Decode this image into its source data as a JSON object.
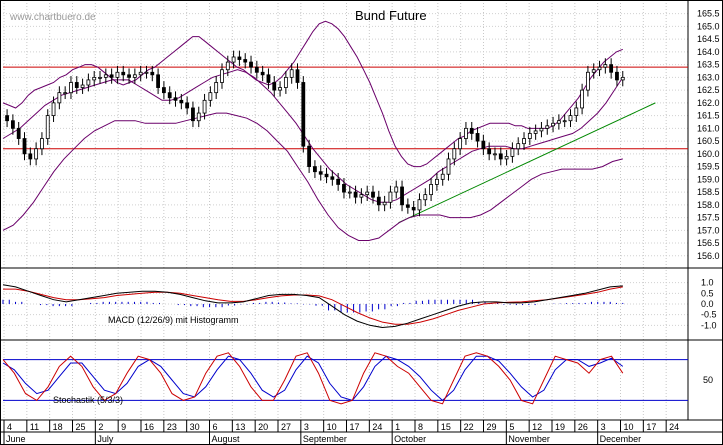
{
  "watermark": "www.chartbuero.de",
  "chart_data": [
    {
      "type": "candlestick",
      "title": "Bund Future",
      "ylim": [
        155.6,
        165.8
      ],
      "y_ticks": [
        "165.5",
        "165.0",
        "164.5",
        "164.0",
        "163.5",
        "163.0",
        "162.5",
        "162.0",
        "161.5",
        "161.0",
        "160.5",
        "160.0",
        "159.5",
        "159.0",
        "158.5",
        "158.0",
        "157.5",
        "157.0",
        "156.5",
        "156.0"
      ],
      "x_ticks": [
        "4",
        "11",
        "18",
        "25",
        "2",
        "9",
        "16",
        "23",
        "30",
        "6",
        "13",
        "20",
        "27",
        "3",
        "10",
        "17",
        "24",
        "1",
        "8",
        "15",
        "22",
        "29",
        "5",
        "12",
        "19",
        "26",
        "3",
        "10",
        "17",
        "24"
      ],
      "months": [
        "June",
        "July",
        "August",
        "September",
        "October",
        "November",
        "December"
      ],
      "horizontal_lines": [
        163.4,
        160.2
      ],
      "trendline": {
        "from": [
          97,
          157.3
        ],
        "to": [
          160,
          162.0
        ]
      },
      "close": [
        161.3,
        161.0,
        160.6,
        160.0,
        159.8,
        160.2,
        160.6,
        161.5,
        162.0,
        162.4,
        162.4,
        162.8,
        162.6,
        162.7,
        162.9,
        163.0,
        163.0,
        163.1,
        163.0,
        163.2,
        163.1,
        163.0,
        163.1,
        163.2,
        163.2,
        163.1,
        162.6,
        162.4,
        162.2,
        162.1,
        162.0,
        161.8,
        161.3,
        161.6,
        162.1,
        162.4,
        162.8,
        163.3,
        163.6,
        163.8,
        163.7,
        163.6,
        163.4,
        163.2,
        163.1,
        162.8,
        162.5,
        162.6,
        163.0,
        163.3,
        162.8,
        160.3,
        159.5,
        159.3,
        159.2,
        159.1,
        159.0,
        158.8,
        158.5,
        158.5,
        158.3,
        158.4,
        158.5,
        158.3,
        158.0,
        158.1,
        158.5,
        158.7,
        158.0,
        157.9,
        157.8,
        158.2,
        158.4,
        158.8,
        159.0,
        159.2,
        159.8,
        160.2,
        160.6,
        161.0,
        160.8,
        160.5,
        160.2,
        160.0,
        160.0,
        159.8,
        159.9,
        160.2,
        160.4,
        160.6,
        160.8,
        160.9,
        161.0,
        161.1,
        161.2,
        161.3,
        161.3,
        161.5,
        161.8,
        162.5,
        163.2,
        163.3,
        163.4,
        163.5,
        163.2,
        162.9,
        163.0
      ],
      "upper_band": [
        162.0,
        161.9,
        161.8,
        162.0,
        162.3,
        162.5,
        162.6,
        162.7,
        162.8,
        163.0,
        163.1,
        163.3,
        163.4,
        163.5,
        163.5,
        163.4,
        163.2,
        163.0,
        162.8,
        162.7,
        162.8,
        162.9,
        163.1,
        163.3,
        163.4,
        163.6,
        163.8,
        164.0,
        164.2,
        164.4,
        164.6,
        164.6,
        164.4,
        164.2,
        164.0,
        163.8,
        163.6,
        163.4,
        163.3,
        163.1,
        162.9,
        162.8,
        162.7,
        162.8,
        163.0,
        163.3,
        163.6,
        164.0,
        164.4,
        164.8,
        165.1,
        165.2,
        165.1,
        164.9,
        164.6,
        164.2,
        163.8,
        163.3,
        162.8,
        162.2,
        161.6,
        160.9,
        160.3,
        159.9,
        159.6,
        159.5,
        159.5,
        159.6,
        159.8,
        160.0,
        160.2,
        160.4,
        160.6,
        160.7,
        160.9,
        161.0,
        161.1,
        161.2,
        161.2,
        161.2,
        161.2,
        161.1,
        161.1,
        161.0,
        161.0,
        161.0,
        161.0,
        161.1,
        161.3,
        161.6,
        161.9,
        162.2,
        162.6,
        163.0,
        163.3,
        163.6,
        163.8,
        164.0,
        164.1
      ],
      "middle_band": [
        160.6,
        160.8,
        161.0,
        161.3,
        161.6,
        161.9,
        162.1,
        162.3,
        162.4,
        162.5,
        162.6,
        162.7,
        162.8,
        162.9,
        162.9,
        162.9,
        162.7,
        162.5,
        162.3,
        162.1,
        162.1,
        162.2,
        162.4,
        162.6,
        162.8,
        163.0,
        163.1,
        163.2,
        163.3,
        163.2,
        163.0,
        162.7,
        162.4,
        162.0,
        161.6,
        161.2,
        160.7,
        160.2,
        159.8,
        159.4,
        159.1,
        158.8,
        158.6,
        158.4,
        158.2,
        158.1,
        158.1,
        158.2,
        158.4,
        158.6,
        158.8,
        159.0,
        159.3,
        159.5,
        159.7,
        159.9,
        160.1,
        160.2,
        160.3,
        160.3,
        160.3,
        160.2,
        160.2,
        160.3,
        160.4,
        160.5,
        160.6,
        160.7,
        160.8,
        161.0,
        161.3,
        161.6,
        162.0,
        162.5,
        163.0
      ],
      "lower_band": [
        157.0,
        157.2,
        157.6,
        158.1,
        158.7,
        159.3,
        159.8,
        160.2,
        160.6,
        160.9,
        161.1,
        161.3,
        161.3,
        161.3,
        161.2,
        161.2,
        161.2,
        161.2,
        161.3,
        161.4,
        161.5,
        161.6,
        161.6,
        161.5,
        161.4,
        161.2,
        160.9,
        160.5,
        160.1,
        159.5,
        158.9,
        158.2,
        157.6,
        157.1,
        156.8,
        156.6,
        156.6,
        156.7,
        157.0,
        157.3,
        157.5,
        157.6,
        157.6,
        157.6,
        157.5,
        157.5,
        157.5,
        157.6,
        157.8,
        158.1,
        158.4,
        158.7,
        159.0,
        159.2,
        159.3,
        159.4,
        159.4,
        159.4,
        159.4,
        159.5,
        159.7,
        159.8
      ]
    },
    {
      "type": "line",
      "label": "MACD (12/26/9) mit Histogramm",
      "ylim": [
        -1.5,
        1.5
      ],
      "y_ticks": [
        "1.0",
        "0.5",
        "0.0",
        "-0.5",
        "-1.0"
      ],
      "macd": [
        0.9,
        0.8,
        0.6,
        0.4,
        0.2,
        0.1,
        0.2,
        0.3,
        0.4,
        0.5,
        0.55,
        0.6,
        0.6,
        0.55,
        0.45,
        0.3,
        0.15,
        0.05,
        0.05,
        0.1,
        0.25,
        0.4,
        0.45,
        0.45,
        0.4,
        0.3,
        -0.1,
        -0.5,
        -0.8,
        -1.0,
        -1.1,
        -1.05,
        -0.9,
        -0.7,
        -0.5,
        -0.3,
        -0.1,
        0.05,
        0.1,
        0.1,
        0.05,
        0.05,
        0.1,
        0.2,
        0.3,
        0.4,
        0.5,
        0.65,
        0.8,
        0.85
      ],
      "signal": [
        0.7,
        0.7,
        0.6,
        0.45,
        0.3,
        0.2,
        0.2,
        0.25,
        0.3,
        0.4,
        0.45,
        0.5,
        0.55,
        0.55,
        0.5,
        0.4,
        0.3,
        0.2,
        0.12,
        0.12,
        0.2,
        0.3,
        0.38,
        0.42,
        0.42,
        0.38,
        0.2,
        -0.1,
        -0.4,
        -0.65,
        -0.85,
        -0.95,
        -0.95,
        -0.85,
        -0.7,
        -0.5,
        -0.3,
        -0.15,
        0.0,
        0.05,
        0.08,
        0.1,
        0.15,
        0.2,
        0.28,
        0.36,
        0.45,
        0.55,
        0.7,
        0.8
      ],
      "histogram": [
        0.2,
        0.1,
        0.0,
        -0.05,
        -0.1,
        -0.1,
        0.0,
        0.05,
        0.1,
        0.1,
        0.1,
        0.1,
        0.05,
        0.0,
        -0.05,
        -0.1,
        -0.15,
        -0.15,
        -0.07,
        -0.02,
        0.05,
        0.1,
        0.07,
        0.03,
        -0.02,
        -0.08,
        -0.3,
        -0.4,
        -0.4,
        -0.35,
        -0.25,
        -0.1,
        0.05,
        0.15,
        0.2,
        0.2,
        0.2,
        0.2,
        0.1,
        0.05,
        -0.03,
        -0.05,
        -0.05,
        0.0,
        0.02,
        0.04,
        0.05,
        0.1,
        0.1,
        0.05
      ]
    },
    {
      "type": "line",
      "label": "Stochastik (5/3/3)",
      "ylim": [
        0,
        100
      ],
      "y_ticks": [
        "50"
      ],
      "levels": [
        80,
        20
      ],
      "k": [
        80,
        60,
        30,
        20,
        40,
        70,
        85,
        70,
        40,
        20,
        30,
        60,
        85,
        80,
        60,
        30,
        20,
        25,
        60,
        85,
        90,
        70,
        40,
        20,
        20,
        50,
        85,
        90,
        60,
        20,
        15,
        20,
        60,
        90,
        85,
        70,
        60,
        40,
        20,
        15,
        50,
        85,
        90,
        85,
        70,
        50,
        20,
        15,
        50,
        85,
        80,
        75,
        60,
        80,
        85,
        60
      ],
      "d": [
        75,
        65,
        45,
        30,
        35,
        55,
        75,
        75,
        55,
        35,
        30,
        45,
        70,
        80,
        70,
        50,
        30,
        25,
        40,
        65,
        85,
        80,
        60,
        35,
        25,
        35,
        65,
        85,
        75,
        45,
        25,
        20,
        40,
        70,
        85,
        80,
        70,
        55,
        35,
        20,
        35,
        65,
        85,
        85,
        78,
        60,
        40,
        25,
        35,
        65,
        80,
        80,
        70,
        75,
        82,
        70
      ]
    }
  ],
  "x_range": [
    0,
    168
  ]
}
